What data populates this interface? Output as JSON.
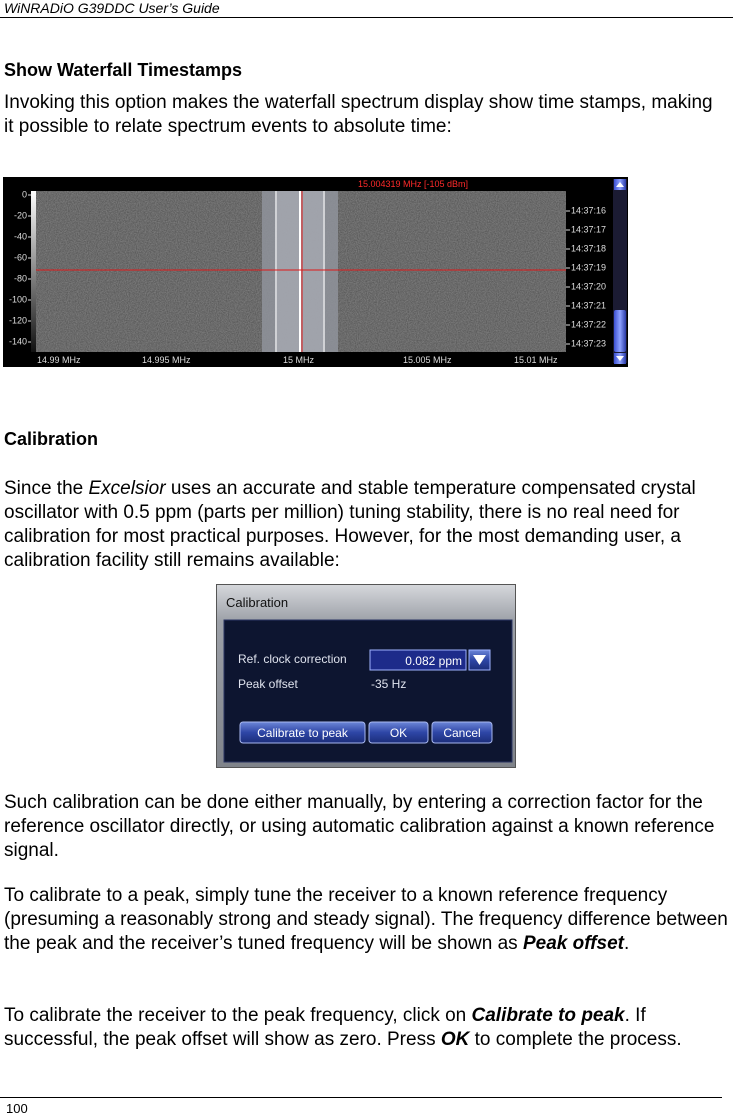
{
  "header": {
    "title": "WiNRADiO G39DDC User’s Guide"
  },
  "sections": [
    {
      "heading": "Show Waterfall Timestamps",
      "paragraphs": [
        [
          "Invoking this option makes the waterfall spectrum display show time stamps, making it possible to relate spectrum events to absolute time:"
        ]
      ]
    },
    {
      "heading": "Calibration",
      "paragraphs": [
        [
          "Since the ",
          "Excelsior",
          " uses an accurate and stable temperature compensated crystal oscillator with 0.5 ppm (parts per million) tuning stability, there is no real need for calibration for most practical purposes. However, for the most demanding user, a calibration facility still remains available:"
        ],
        [
          "Such calibration can be done either manually, by entering a correction factor for the reference oscillator directly, or using automatic calibration against a known reference signal."
        ],
        [
          "To calibrate to a peak, simply tune the receiver to a known reference frequency (presuming a reasonably strong and steady signal). The frequency difference between the peak and the receiver’s tuned frequency will be shown as ",
          "Peak offset",
          "."
        ],
        [
          "To calibrate the receiver to the peak frequency, click on ",
          "Calibrate to peak",
          ". If successful, the peak offset will show as zero. Press ",
          "OK",
          " to complete the process."
        ]
      ]
    }
  ],
  "waterfall": {
    "readout": "15.004319 MHz [-105 dBm]",
    "level_labels": [
      "0",
      "-20",
      "-40",
      "-60",
      "-80",
      "-100",
      "-120",
      "-140"
    ],
    "time_labels": [
      "14:37:16",
      "14:37:17",
      "14:37:18",
      "14:37:19",
      "14:37:20",
      "14:37:21",
      "14:37:22",
      "14:37:23"
    ],
    "freq_labels": [
      "14.99 MHz",
      "14.995 MHz",
      "15 MHz",
      "15.005 MHz",
      "15.01 MHz"
    ]
  },
  "dialog": {
    "title": "Calibration",
    "ref_label": "Ref. clock correction",
    "ref_value": "0.082 ppm",
    "peak_label": "Peak offset",
    "peak_value": "-35 Hz",
    "buttons": [
      "Calibrate to peak",
      "OK",
      "Cancel"
    ]
  },
  "footer": {
    "page": "100"
  }
}
